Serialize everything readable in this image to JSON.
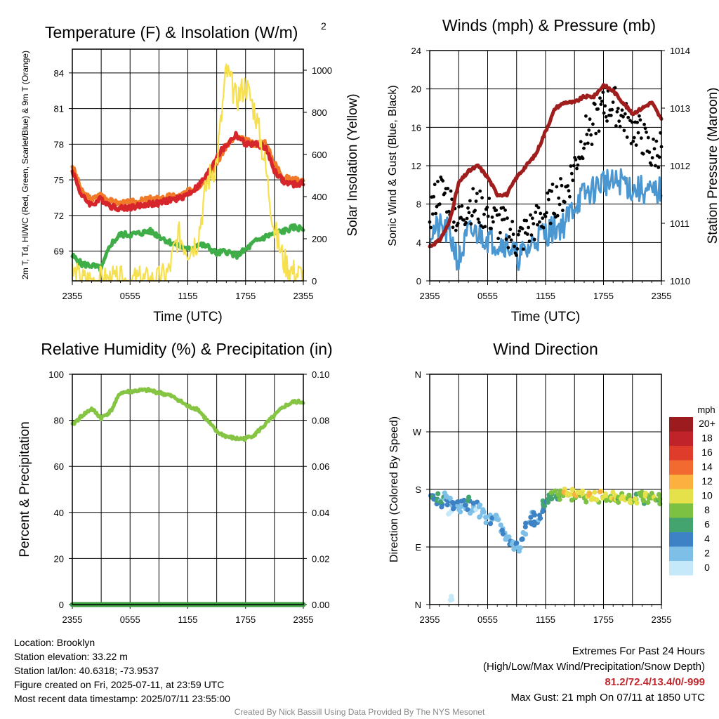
{
  "colors": {
    "red": "#d7262b",
    "orange": "#f07a28",
    "green": "#3fae48",
    "yellow": "#f7e04e",
    "blue": "#4a97d1",
    "black": "#000000",
    "maroon": "#a01d1d",
    "rh_green": "#86c443",
    "precip_green": "#3a9d3e"
  },
  "chart_data": [
    {
      "type": "line",
      "title": "Temperature (F) & Insolation (W/m²)",
      "xlabel": "Time (UTC)",
      "ylabel_left": "2m T, Td, HI/WC (Red, Green, Scarlet/Blue) & 9m T (Orange)",
      "ylabel_right": "Solar Insolation (Yellow)",
      "x_ticks": [
        "2355",
        "0555",
        "1155",
        "1755",
        "2355"
      ],
      "y_ticks_left": [
        69,
        72,
        75,
        78,
        81,
        84
      ],
      "y_ticks_right": [
        0,
        200,
        400,
        600,
        800,
        1000
      ],
      "ylim_left": [
        66.5,
        86
      ],
      "ylim_right": [
        0,
        1100
      ],
      "x_hours": [
        0,
        1,
        2,
        3,
        4,
        5,
        6,
        7,
        8,
        9,
        10,
        11,
        12,
        13,
        14,
        15,
        16,
        17,
        18,
        19,
        20,
        21,
        22,
        23,
        24
      ],
      "series": [
        {
          "name": "9m T",
          "color_key": "orange",
          "axis": "left",
          "values": [
            76.2,
            74.0,
            73.3,
            73.8,
            73.2,
            73.0,
            73.1,
            73.2,
            73.4,
            73.4,
            73.6,
            73.6,
            74.0,
            74.4,
            75.2,
            76.4,
            77.9,
            78.6,
            78.3,
            78.0,
            78.2,
            76.4,
            75.2,
            75.0,
            75.0
          ]
        },
        {
          "name": "2m T",
          "color_key": "red",
          "axis": "left",
          "values": [
            75.8,
            73.6,
            72.9,
            73.4,
            72.8,
            72.6,
            72.7,
            72.8,
            73.0,
            73.0,
            73.3,
            73.4,
            73.8,
            74.4,
            75.4,
            77.0,
            77.9,
            78.8,
            78.0,
            78.0,
            77.8,
            75.8,
            74.8,
            74.6,
            74.7
          ]
        },
        {
          "name": "2m Td",
          "color_key": "green",
          "axis": "left",
          "values": [
            68.6,
            67.9,
            67.8,
            67.5,
            69.6,
            70.4,
            70.4,
            70.5,
            70.7,
            70.3,
            69.8,
            69.5,
            69.1,
            69.6,
            69.4,
            68.8,
            69.0,
            68.6,
            69.1,
            69.8,
            70.2,
            70.5,
            70.7,
            71.0,
            70.9
          ]
        },
        {
          "name": "Solar Insolation",
          "color_key": "yellow",
          "axis": "right",
          "values": [
            40,
            0,
            0,
            0,
            0,
            0,
            0,
            0,
            0,
            0,
            40,
            220,
            150,
            190,
            470,
            560,
            1000,
            860,
            930,
            800,
            560,
            240,
            90,
            40,
            20
          ]
        }
      ]
    },
    {
      "type": "line",
      "title": "Winds (mph) & Pressure (mb)",
      "xlabel": "Time (UTC)",
      "ylabel_left": "Sonic Wind & Gust (Blue, Black)",
      "ylabel_right": "Station Pressure (Maroon)",
      "x_ticks": [
        "2355",
        "0555",
        "1155",
        "1755",
        "2355"
      ],
      "y_ticks_left": [
        0,
        4,
        8,
        12,
        16,
        20,
        24
      ],
      "y_ticks_right": [
        1010,
        1011,
        1012,
        1013,
        1014
      ],
      "ylim_left": [
        0,
        24
      ],
      "ylim_right": [
        1010,
        1014
      ],
      "x_hours": [
        0,
        1,
        2,
        3,
        4,
        5,
        6,
        7,
        8,
        9,
        10,
        11,
        12,
        13,
        14,
        15,
        16,
        17,
        18,
        19,
        20,
        21,
        22,
        23,
        24
      ],
      "series": [
        {
          "name": "Sonic Wind",
          "color_key": "blue",
          "axis": "left",
          "values": [
            5,
            5.5,
            5,
            2,
            5,
            5,
            4.5,
            4,
            4,
            2.5,
            3,
            4.5,
            5,
            5.5,
            6,
            8,
            9,
            9.5,
            10.5,
            10,
            10.5,
            9.5,
            9.5,
            9,
            9.5
          ]
        },
        {
          "name": "Gust",
          "color_key": "black",
          "axis": "left",
          "values": [
            7,
            9.5,
            8.5,
            6,
            8,
            7.5,
            7,
            6,
            5.5,
            4,
            5,
            6,
            7,
            8.5,
            9,
            12,
            15,
            16.5,
            18,
            18.5,
            17,
            16,
            15,
            13,
            14
          ]
        },
        {
          "name": "Station Pressure",
          "color_key": "maroon",
          "axis": "right",
          "values": [
            1010.6,
            1010.7,
            1011.0,
            1011.7,
            1011.9,
            1012.0,
            1011.8,
            1011.5,
            1011.5,
            1011.8,
            1012.0,
            1012.2,
            1012.6,
            1013.0,
            1013.1,
            1013.1,
            1013.2,
            1013.2,
            1013.4,
            1013.3,
            1013.1,
            1012.9,
            1013.0,
            1013.1,
            1012.8
          ]
        }
      ]
    },
    {
      "type": "line",
      "title": "Relative Humidity (%) & Precipitation (in)",
      "ylabel_left": "Percent & Precipitation",
      "x_ticks": [
        "2355",
        "0555",
        "1155",
        "1755",
        "2355"
      ],
      "y_ticks_left": [
        0,
        20,
        40,
        60,
        80,
        100
      ],
      "y_ticks_right": [
        "0.00",
        "0.02",
        "0.04",
        "0.06",
        "0.08",
        "0.10"
      ],
      "ylim_left": [
        0,
        100
      ],
      "ylim_right": [
        0,
        0.1
      ],
      "x_hours": [
        0,
        1,
        2,
        3,
        4,
        5,
        6,
        7,
        8,
        9,
        10,
        11,
        12,
        13,
        14,
        15,
        16,
        17,
        18,
        19,
        20,
        21,
        22,
        23,
        24
      ],
      "series": [
        {
          "name": "Relative Humidity",
          "color_key": "rh_green",
          "axis": "left",
          "values": [
            78,
            82,
            85,
            81,
            84,
            92,
            92.5,
            93,
            93,
            92,
            91,
            89,
            86,
            85,
            80,
            75,
            73,
            72,
            72,
            74,
            78,
            82,
            86,
            88,
            88
          ]
        },
        {
          "name": "Precipitation",
          "color_key": "precip_green",
          "axis": "right",
          "values": [
            0,
            0,
            0,
            0,
            0,
            0,
            0,
            0,
            0,
            0,
            0,
            0,
            0,
            0,
            0,
            0,
            0,
            0,
            0,
            0,
            0,
            0,
            0,
            0,
            0
          ]
        }
      ]
    },
    {
      "type": "scatter",
      "title": "Wind Direction",
      "ylabel": "Direction (Colored By Speed)",
      "x_ticks": [
        "2355",
        "0555",
        "1155",
        "1755",
        "2355"
      ],
      "y_tick_labels": [
        "N",
        "E",
        "S",
        "W",
        "N"
      ],
      "ylim": [
        0,
        360
      ],
      "legend_title": "mph",
      "legend_levels": [
        "0",
        "2",
        "4",
        "6",
        "8",
        "10",
        "12",
        "14",
        "16",
        "18",
        "20+"
      ],
      "legend_colors": [
        "#c6e9f9",
        "#7dbfe6",
        "#3d82c4",
        "#44a470",
        "#7dc142",
        "#e5e14a",
        "#fbb040",
        "#f26a2f",
        "#e03c2c",
        "#c1232b",
        "#9b1b1f"
      ],
      "points": [
        {
          "x": 0.2,
          "y": 165,
          "s": 4
        },
        {
          "x": 0.4,
          "y": 170,
          "s": 6
        },
        {
          "x": 0.6,
          "y": 160,
          "s": 5
        },
        {
          "x": 0.9,
          "y": 168,
          "s": 7
        },
        {
          "x": 1.1,
          "y": 158,
          "s": 4
        },
        {
          "x": 1.3,
          "y": 163,
          "s": 6
        },
        {
          "x": 1.6,
          "y": 170,
          "s": 3
        },
        {
          "x": 1.8,
          "y": 161,
          "s": 5
        },
        {
          "x": 2.0,
          "y": 167,
          "s": 2
        },
        {
          "x": 2.1,
          "y": 140,
          "s": 1
        },
        {
          "x": 2.1,
          "y": 10,
          "s": 1
        },
        {
          "x": 2.3,
          "y": 155,
          "s": 4
        },
        {
          "x": 2.6,
          "y": 150,
          "s": 5
        },
        {
          "x": 2.9,
          "y": 157,
          "s": 4
        },
        {
          "x": 3.2,
          "y": 148,
          "s": 3
        },
        {
          "x": 3.5,
          "y": 160,
          "s": 5
        },
        {
          "x": 3.8,
          "y": 152,
          "s": 4
        },
        {
          "x": 4.1,
          "y": 162,
          "s": 6
        },
        {
          "x": 4.4,
          "y": 145,
          "s": 3
        },
        {
          "x": 4.7,
          "y": 158,
          "s": 4
        },
        {
          "x": 5.0,
          "y": 150,
          "s": 2
        },
        {
          "x": 5.3,
          "y": 140,
          "s": 3
        },
        {
          "x": 5.6,
          "y": 145,
          "s": 2
        },
        {
          "x": 5.9,
          "y": 132,
          "s": 3
        },
        {
          "x": 6.2,
          "y": 138,
          "s": 2
        },
        {
          "x": 6.5,
          "y": 130,
          "s": 4
        },
        {
          "x": 6.8,
          "y": 135,
          "s": 3
        },
        {
          "x": 7.1,
          "y": 128,
          "s": 2
        },
        {
          "x": 7.4,
          "y": 120,
          "s": 3
        },
        {
          "x": 7.7,
          "y": 112,
          "s": 4
        },
        {
          "x": 8.0,
          "y": 105,
          "s": 3
        },
        {
          "x": 8.3,
          "y": 100,
          "s": 4
        },
        {
          "x": 8.6,
          "y": 92,
          "s": 3
        },
        {
          "x": 8.9,
          "y": 96,
          "s": 4
        },
        {
          "x": 9.2,
          "y": 84,
          "s": 3
        },
        {
          "x": 9.5,
          "y": 102,
          "s": 4
        },
        {
          "x": 9.8,
          "y": 110,
          "s": 3
        },
        {
          "x": 10.1,
          "y": 124,
          "s": 4
        },
        {
          "x": 10.4,
          "y": 132,
          "s": 5
        },
        {
          "x": 10.7,
          "y": 140,
          "s": 4
        },
        {
          "x": 11.0,
          "y": 128,
          "s": 5
        },
        {
          "x": 11.3,
          "y": 136,
          "s": 4
        },
        {
          "x": 11.6,
          "y": 150,
          "s": 5
        },
        {
          "x": 11.9,
          "y": 158,
          "s": 7
        },
        {
          "x": 12.2,
          "y": 162,
          "s": 6
        },
        {
          "x": 12.5,
          "y": 168,
          "s": 7
        },
        {
          "x": 12.8,
          "y": 172,
          "s": 8
        },
        {
          "x": 13.1,
          "y": 165,
          "s": 6
        },
        {
          "x": 13.4,
          "y": 170,
          "s": 8
        },
        {
          "x": 13.7,
          "y": 176,
          "s": 9
        },
        {
          "x": 14.0,
          "y": 180,
          "s": 12
        },
        {
          "x": 14.3,
          "y": 172,
          "s": 10
        },
        {
          "x": 14.6,
          "y": 178,
          "s": 11
        },
        {
          "x": 14.9,
          "y": 168,
          "s": 9
        },
        {
          "x": 15.2,
          "y": 175,
          "s": 12
        },
        {
          "x": 15.5,
          "y": 170,
          "s": 10
        },
        {
          "x": 15.8,
          "y": 176,
          "s": 11
        },
        {
          "x": 16.1,
          "y": 164,
          "s": 9
        },
        {
          "x": 16.4,
          "y": 172,
          "s": 10
        },
        {
          "x": 16.7,
          "y": 168,
          "s": 12
        },
        {
          "x": 17.0,
          "y": 170,
          "s": 11
        },
        {
          "x": 17.3,
          "y": 165,
          "s": 10
        },
        {
          "x": 17.6,
          "y": 173,
          "s": 12
        },
        {
          "x": 17.9,
          "y": 166,
          "s": 10
        },
        {
          "x": 18.2,
          "y": 170,
          "s": 11
        },
        {
          "x": 18.5,
          "y": 163,
          "s": 9
        },
        {
          "x": 18.8,
          "y": 172,
          "s": 10
        },
        {
          "x": 19.1,
          "y": 165,
          "s": 12
        },
        {
          "x": 19.4,
          "y": 169,
          "s": 10
        },
        {
          "x": 19.7,
          "y": 162,
          "s": 8
        },
        {
          "x": 20.0,
          "y": 170,
          "s": 10
        },
        {
          "x": 20.3,
          "y": 165,
          "s": 11
        },
        {
          "x": 20.6,
          "y": 171,
          "s": 9
        },
        {
          "x": 20.9,
          "y": 163,
          "s": 10
        },
        {
          "x": 21.2,
          "y": 168,
          "s": 8
        },
        {
          "x": 21.5,
          "y": 164,
          "s": 10
        },
        {
          "x": 21.8,
          "y": 170,
          "s": 9
        },
        {
          "x": 22.1,
          "y": 162,
          "s": 8
        },
        {
          "x": 22.4,
          "y": 168,
          "s": 10
        },
        {
          "x": 22.7,
          "y": 165,
          "s": 9
        },
        {
          "x": 23.0,
          "y": 170,
          "s": 8
        },
        {
          "x": 23.3,
          "y": 164,
          "s": 10
        },
        {
          "x": 23.6,
          "y": 167,
          "s": 9
        },
        {
          "x": 23.9,
          "y": 163,
          "s": 8
        }
      ]
    }
  ],
  "info": {
    "location": "Location: Brooklyn",
    "elevation": "Station elevation: 33.22 m",
    "latlon": "Station lat/lon: 40.6318; -73.9537",
    "created": "Figure created on Fri, 2025-07-11, at 23:59 UTC",
    "recent": "Most recent data timestamp: 2025/07/11 23:55:00",
    "extremes_title": "Extremes For Past 24 Hours",
    "extremes_desc": "(High/Low/Max Wind/Precipitation/Snow Depth)",
    "extremes_values": "81.2/72.4/13.4/0/-999",
    "max_gust": "Max Gust: 21 mph On 07/11 at 1850 UTC",
    "credit": "Created By Nick Bassill Using Data Provided By The NYS Mesonet"
  }
}
